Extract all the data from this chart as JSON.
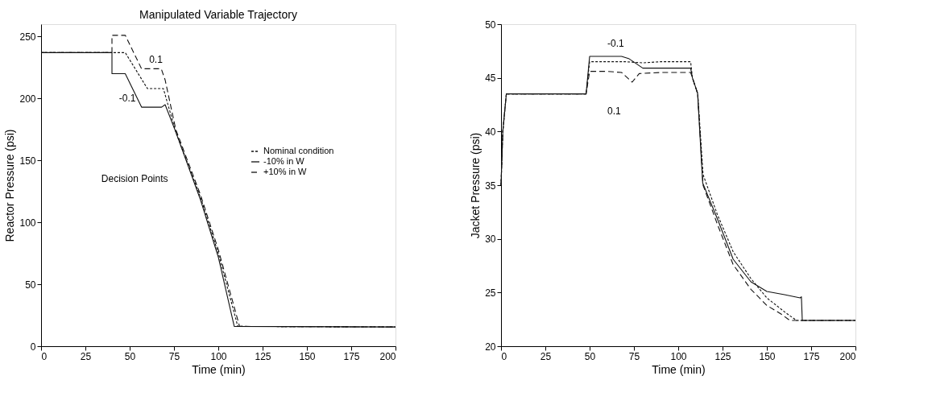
{
  "chart_data": [
    {
      "type": "line",
      "title": "Manipulated Variable Trajectory",
      "xlabel": "Time (min)",
      "ylabel": "Reactor Pressure (psi)",
      "xlim": [
        0,
        200
      ],
      "xticks": [
        0,
        25,
        50,
        75,
        100,
        125,
        150,
        175,
        200
      ],
      "ylim": [
        0,
        260
      ],
      "yticks": [
        0,
        50,
        100,
        150,
        200,
        250
      ],
      "grid": false,
      "legend": "right",
      "annotations": [
        "0.1",
        "-0.1",
        "Decision Points"
      ],
      "series": [
        {
          "name": "Nominal condition",
          "color": "#111111",
          "line_style": "dotted",
          "x": [
            0,
            40,
            47.5,
            60,
            69,
            76,
            90,
            100,
            111,
            200
          ],
          "values": [
            237,
            237,
            237,
            208,
            208,
            173,
            120,
            75,
            16,
            15.5
          ]
        },
        {
          "name": "-10% in W",
          "color": "#111111",
          "line_style": "solid",
          "x": [
            0,
            40,
            40,
            47.5,
            56.7,
            68,
            70,
            76,
            90,
            100,
            109,
            200
          ],
          "values": [
            237,
            237,
            220,
            220,
            193,
            193,
            195,
            173,
            118,
            72,
            16,
            15.5
          ]
        },
        {
          "name": "+10% in W",
          "color": "#111111",
          "line_style": "dashed",
          "x": [
            0,
            40,
            40,
            47.5,
            56.7,
            67.8,
            70,
            76,
            90,
            100,
            112,
            200
          ],
          "values": [
            237,
            237,
            251,
            251,
            224,
            224,
            215,
            175,
            122,
            78,
            16,
            15.5
          ]
        }
      ]
    },
    {
      "type": "line",
      "xlabel": "Time (min)",
      "ylabel": "Jacket Pressure (psi)",
      "xlim": [
        0,
        200
      ],
      "xticks": [
        0,
        25,
        50,
        75,
        100,
        125,
        150,
        175,
        200
      ],
      "ylim": [
        20,
        50
      ],
      "yticks": [
        20,
        25,
        30,
        35,
        40,
        45,
        50
      ],
      "grid": false,
      "legend": "left",
      "annotations": [
        "-0.1",
        "0.1"
      ],
      "series": [
        {
          "name": "Nominal condition",
          "color": "#111111",
          "line_style": "dotted",
          "x": [
            0,
            1,
            3,
            48,
            50,
            60,
            70,
            80,
            90,
            107,
            108,
            111,
            114,
            122,
            131,
            141,
            150,
            160,
            166.7,
            200
          ],
          "values": [
            35,
            40,
            43.5,
            43.5,
            46.5,
            46.5,
            46.5,
            46.4,
            46.5,
            46.5,
            45,
            43.5,
            36,
            32.3,
            28.8,
            26.3,
            24.5,
            23.2,
            22.4,
            22.4
          ]
        },
        {
          "name": "-10% in W",
          "color": "#111111",
          "line_style": "solid",
          "x": [
            0,
            1,
            3,
            48,
            50,
            60,
            68,
            72,
            80,
            90,
            107,
            108,
            110.9,
            113.8,
            122.5,
            131,
            141,
            150,
            160,
            168.8,
            169.5,
            170,
            200
          ],
          "values": [
            35,
            40,
            43.5,
            43.5,
            47.0,
            47.0,
            47.0,
            46.8,
            45.9,
            45.9,
            45.9,
            45,
            43.6,
            35.2,
            31.7,
            28.1,
            26.0,
            25.1,
            24.8,
            24.5,
            24.6,
            22.4,
            22.4
          ]
        },
        {
          "name": "+10% in W",
          "color": "#111111",
          "line_style": "dashed",
          "x": [
            0,
            1,
            3,
            48,
            50,
            60,
            68,
            74,
            78,
            90,
            107,
            108,
            111,
            114,
            122,
            131,
            141,
            150,
            158,
            163,
            200
          ],
          "values": [
            35,
            40,
            43.5,
            43.5,
            45.6,
            45.6,
            45.5,
            44.6,
            45.4,
            45.5,
            45.5,
            45,
            43.5,
            35,
            31.4,
            27.6,
            25.3,
            23.8,
            23.0,
            22.4,
            22.4
          ]
        }
      ]
    }
  ]
}
